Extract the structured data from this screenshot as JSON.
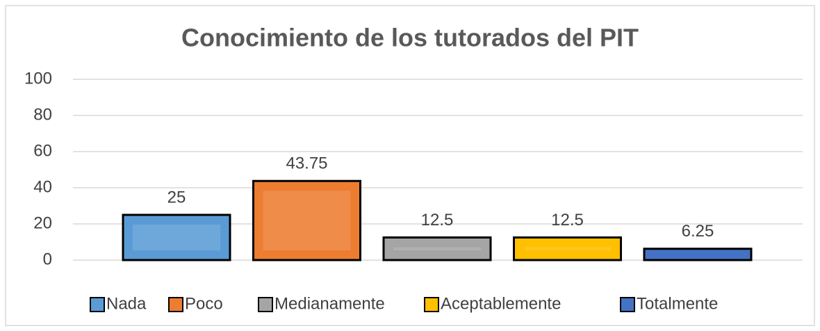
{
  "chart_data": {
    "type": "bar",
    "title": "Conocimiento de los tutorados del PIT",
    "categories": [
      null
    ],
    "series": [
      {
        "name": "Nada",
        "color": "#5b9bd5",
        "values": [
          25
        ]
      },
      {
        "name": "Poco",
        "color": "#ed7d31",
        "values": [
          43.75
        ]
      },
      {
        "name": "Medianamente",
        "color": "#a5a5a5",
        "values": [
          12.5
        ]
      },
      {
        "name": "Aceptablemente",
        "color": "#ffc000",
        "values": [
          12.5
        ]
      },
      {
        "name": "Totalmente",
        "color": "#4472c4",
        "values": [
          6.25
        ]
      }
    ],
    "ylim": [
      0,
      100
    ],
    "yticks": [
      0,
      20,
      40,
      60,
      80,
      100
    ],
    "grid": true,
    "legend": "bottom"
  }
}
